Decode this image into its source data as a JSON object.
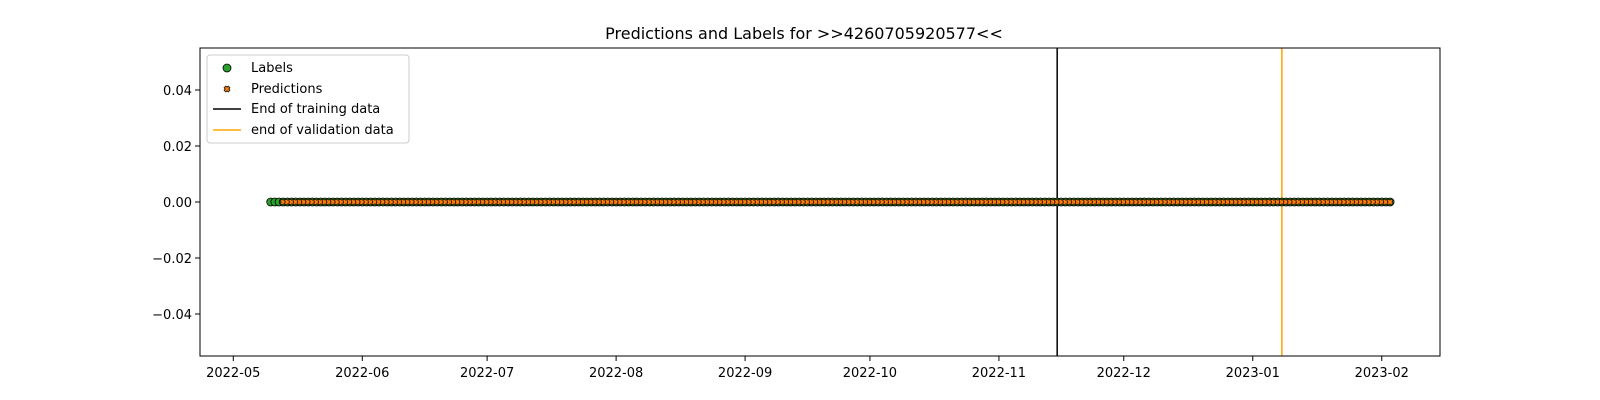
{
  "chart_data": {
    "type": "scatter",
    "title": "Predictions and Labels for >>4260705920577<<",
    "xlabel": "",
    "ylabel": "",
    "xlim": [
      "2022-04-23",
      "2023-02-15"
    ],
    "ylim": [
      -0.055,
      0.055
    ],
    "x_ticks": [
      "2022-05",
      "2022-06",
      "2022-07",
      "2022-08",
      "2022-09",
      "2022-10",
      "2022-11",
      "2022-12",
      "2023-01",
      "2023-02"
    ],
    "y_ticks": [
      0.04,
      0.02,
      0.0,
      -0.02,
      -0.04
    ],
    "y_tick_labels": [
      "0.04",
      "0.02",
      "0.00",
      "−0.02",
      "−0.04"
    ],
    "series": [
      {
        "name": "Labels",
        "marker": "circle",
        "color": "#2ca02c",
        "edge": "#000000",
        "x_start": "2022-05-10",
        "x_end": "2023-02-03",
        "step_days": 1,
        "y": 0
      },
      {
        "name": "Predictions",
        "marker": "x",
        "color": "#ff7f0e",
        "edge": "#000000",
        "x_start": "2022-05-13",
        "x_end": "2023-02-03",
        "step_days": 1,
        "y": 0
      }
    ],
    "vlines": [
      {
        "name": "End of training data",
        "x": "2022-11-15",
        "color": "#000000"
      },
      {
        "name": "end of validation data",
        "x": "2023-01-08",
        "color": "#ffa500"
      }
    ],
    "legend_position": "upper-left",
    "grid": false
  }
}
